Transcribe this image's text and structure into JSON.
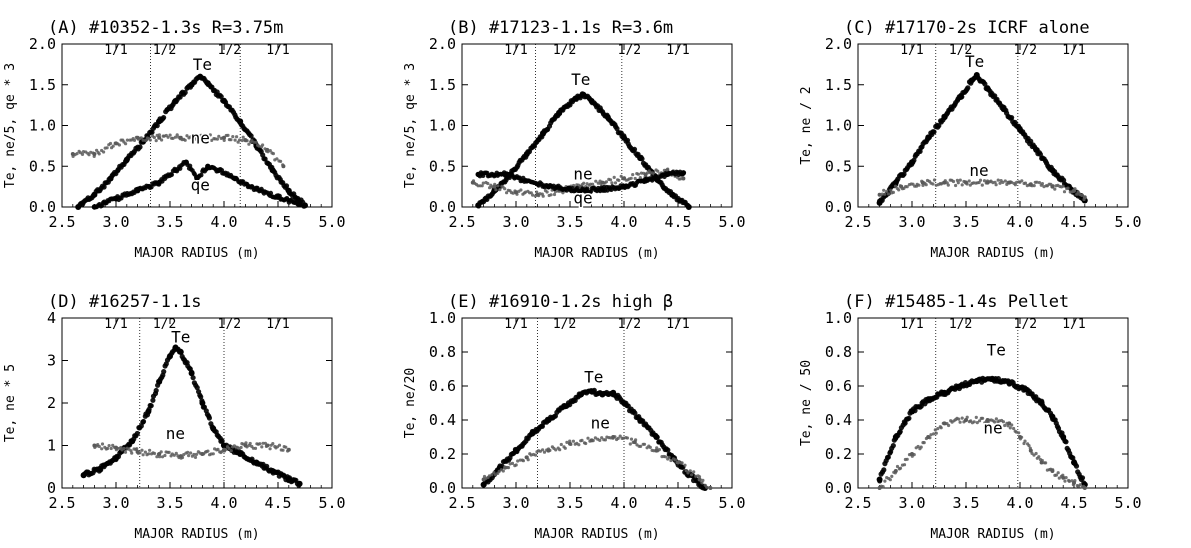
{
  "chart_data": [
    {
      "type": "scatter",
      "title": "(A) #10352-1.3s R=3.75m",
      "xlabel": "MAJOR RADIUS (m)",
      "ylabel": "Te, ne/5, qe * 3",
      "xlim": [
        2.5,
        5.0
      ],
      "ylim": [
        0.0,
        2.0
      ],
      "xticks": [
        "2.5",
        "3.0",
        "3.5",
        "4.0",
        "4.5",
        "5.0"
      ],
      "yticks": [
        "0.0",
        "0.5",
        "1.0",
        "1.5",
        "2.0"
      ],
      "rational_surfaces": {
        "labels": [
          "1/1",
          "1/2",
          "1/2",
          "1/1"
        ],
        "lines": [
          3.32,
          4.15
        ]
      },
      "series": [
        {
          "name": "Te",
          "x": [
            2.65,
            2.8,
            2.95,
            3.1,
            3.25,
            3.4,
            3.55,
            3.7,
            3.78,
            3.85,
            4.0,
            4.15,
            4.3,
            4.45,
            4.6,
            4.75
          ],
          "y": [
            0.0,
            0.15,
            0.35,
            0.58,
            0.8,
            1.05,
            1.3,
            1.5,
            1.6,
            1.52,
            1.3,
            1.05,
            0.75,
            0.45,
            0.2,
            0.02
          ]
        },
        {
          "name": "ne",
          "x": [
            2.6,
            2.8,
            3.0,
            3.2,
            3.4,
            3.6,
            3.8,
            4.0,
            4.2,
            4.4,
            4.55
          ],
          "y": [
            0.65,
            0.65,
            0.78,
            0.85,
            0.85,
            0.85,
            0.85,
            0.85,
            0.82,
            0.7,
            0.5
          ]
        },
        {
          "name": "qe",
          "x": [
            2.8,
            3.0,
            3.2,
            3.4,
            3.55,
            3.65,
            3.75,
            3.85,
            3.95,
            4.1,
            4.3,
            4.5,
            4.7
          ],
          "y": [
            0.0,
            0.1,
            0.2,
            0.3,
            0.45,
            0.55,
            0.35,
            0.5,
            0.45,
            0.35,
            0.22,
            0.12,
            0.03
          ]
        }
      ],
      "labels": [
        {
          "text": "Te",
          "x": 3.8,
          "y": 1.68
        },
        {
          "text": "ne",
          "x": 3.78,
          "y": 0.78
        },
        {
          "text": "qe",
          "x": 3.78,
          "y": 0.2
        }
      ]
    },
    {
      "type": "scatter",
      "title": "(B) #17123-1.1s  R=3.6m",
      "xlabel": "MAJOR RADIUS (m)",
      "ylabel": "Te, ne/5, qe * 3",
      "xlim": [
        2.5,
        5.0
      ],
      "ylim": [
        0.0,
        2.0
      ],
      "xticks": [
        "2.5",
        "3.0",
        "3.5",
        "4.0",
        "4.5",
        "5.0"
      ],
      "yticks": [
        "0.0",
        "0.5",
        "1.0",
        "1.5",
        "2.0"
      ],
      "rational_surfaces": {
        "labels": [
          "1/1",
          "1/2",
          "1/2",
          "1/1"
        ],
        "lines": [
          3.18,
          3.98
        ]
      },
      "series": [
        {
          "name": "Te",
          "x": [
            2.65,
            2.8,
            2.95,
            3.1,
            3.25,
            3.4,
            3.55,
            3.62,
            3.7,
            3.85,
            4.0,
            4.15,
            4.3,
            4.45,
            4.6
          ],
          "y": [
            0.02,
            0.2,
            0.4,
            0.65,
            0.9,
            1.15,
            1.33,
            1.38,
            1.3,
            1.1,
            0.85,
            0.6,
            0.35,
            0.15,
            0.0
          ]
        },
        {
          "name": "ne",
          "x": [
            2.6,
            2.8,
            3.0,
            3.2,
            3.4,
            3.6,
            3.8,
            4.0,
            4.2,
            4.4,
            4.55
          ],
          "y": [
            0.3,
            0.25,
            0.18,
            0.15,
            0.2,
            0.25,
            0.3,
            0.35,
            0.4,
            0.45,
            0.35
          ]
        },
        {
          "name": "qe",
          "x": [
            2.65,
            2.9,
            3.1,
            3.3,
            3.5,
            3.65,
            3.8,
            4.0,
            4.2,
            4.4,
            4.55
          ],
          "y": [
            0.4,
            0.4,
            0.32,
            0.25,
            0.22,
            0.2,
            0.22,
            0.25,
            0.32,
            0.4,
            0.42
          ]
        }
      ],
      "labels": [
        {
          "text": "Te",
          "x": 3.6,
          "y": 1.5
        },
        {
          "text": "ne",
          "x": 3.62,
          "y": 0.34
        },
        {
          "text": "qe",
          "x": 3.62,
          "y": 0.04
        }
      ]
    },
    {
      "type": "scatter",
      "title": "(C) #17170-2s ICRF alone",
      "xlabel": "MAJOR RADIUS (m)",
      "ylabel": "Te, ne / 2",
      "xlim": [
        2.5,
        5.0
      ],
      "ylim": [
        0.0,
        2.0
      ],
      "xticks": [
        "2.5",
        "3.0",
        "3.5",
        "4.0",
        "4.5",
        "5.0"
      ],
      "yticks": [
        "0.0",
        "0.5",
        "1.0",
        "1.5",
        "2.0"
      ],
      "rational_surfaces": {
        "labels": [
          "1/1",
          "1/2",
          "1/2",
          "1/1"
        ],
        "lines": [
          3.22,
          3.98
        ]
      },
      "series": [
        {
          "name": "Te",
          "x": [
            2.7,
            2.85,
            3.0,
            3.15,
            3.3,
            3.45,
            3.55,
            3.6,
            3.7,
            3.85,
            4.0,
            4.15,
            4.3,
            4.45,
            4.6
          ],
          "y": [
            0.05,
            0.3,
            0.55,
            0.85,
            1.1,
            1.35,
            1.55,
            1.62,
            1.45,
            1.2,
            0.95,
            0.7,
            0.45,
            0.25,
            0.08
          ]
        },
        {
          "name": "ne",
          "x": [
            2.7,
            2.9,
            3.1,
            3.3,
            3.5,
            3.7,
            3.9,
            4.1,
            4.3,
            4.5,
            4.6
          ],
          "y": [
            0.15,
            0.25,
            0.3,
            0.3,
            0.3,
            0.3,
            0.3,
            0.28,
            0.25,
            0.2,
            0.12
          ]
        }
      ],
      "labels": [
        {
          "text": "Te",
          "x": 3.58,
          "y": 1.72
        },
        {
          "text": "ne",
          "x": 3.62,
          "y": 0.38
        }
      ]
    },
    {
      "type": "scatter",
      "title": "(D) #16257-1.1s",
      "xlabel": "MAJOR RADIUS (m)",
      "ylabel": "Te, ne * 5",
      "xlim": [
        2.5,
        5.0
      ],
      "ylim": [
        0,
        4
      ],
      "xticks": [
        "2.5",
        "3.0",
        "3.5",
        "4.0",
        "4.5",
        "5.0"
      ],
      "yticks": [
        "0",
        "1",
        "2",
        "3",
        "4"
      ],
      "rational_surfaces": {
        "labels": [
          "1/1",
          "1/2",
          "1/2",
          "1/1"
        ],
        "lines": [
          3.22,
          4.0
        ]
      },
      "series": [
        {
          "name": "Te",
          "x": [
            2.7,
            2.85,
            3.0,
            3.15,
            3.3,
            3.4,
            3.5,
            3.55,
            3.6,
            3.7,
            3.8,
            3.9,
            4.0,
            4.15,
            4.3,
            4.45,
            4.6,
            4.7
          ],
          "y": [
            0.3,
            0.45,
            0.7,
            1.1,
            1.8,
            2.5,
            3.1,
            3.3,
            3.2,
            2.7,
            2.0,
            1.4,
            1.0,
            0.8,
            0.6,
            0.4,
            0.2,
            0.1
          ]
        },
        {
          "name": "ne",
          "x": [
            2.8,
            3.0,
            3.2,
            3.4,
            3.6,
            3.8,
            4.0,
            4.2,
            4.4,
            4.6
          ],
          "y": [
            1.0,
            0.95,
            0.85,
            0.8,
            0.75,
            0.8,
            0.9,
            1.0,
            1.0,
            0.9
          ]
        }
      ],
      "labels": [
        {
          "text": "Te",
          "x": 3.6,
          "y": 3.42
        },
        {
          "text": "ne",
          "x": 3.55,
          "y": 1.15
        }
      ]
    },
    {
      "type": "scatter",
      "title": "(E) #16910-1.2s high β",
      "xlabel": "MAJOR RADIUS (m)",
      "ylabel": "Te, ne/20",
      "xlim": [
        2.5,
        5.0
      ],
      "ylim": [
        0.0,
        1.0
      ],
      "xticks": [
        "2.5",
        "3.0",
        "3.5",
        "4.0",
        "4.5",
        "5.0"
      ],
      "yticks": [
        "0.0",
        "0.2",
        "0.4",
        "0.6",
        "0.8",
        "1.0"
      ],
      "rational_surfaces": {
        "labels": [
          "1/1",
          "1/2",
          "1/2",
          "1/1"
        ],
        "lines": [
          3.2,
          4.0
        ]
      },
      "series": [
        {
          "name": "Te",
          "x": [
            2.7,
            2.85,
            3.0,
            3.15,
            3.3,
            3.45,
            3.6,
            3.7,
            3.8,
            3.9,
            4.0,
            4.15,
            4.3,
            4.45,
            4.6,
            4.75
          ],
          "y": [
            0.02,
            0.12,
            0.22,
            0.32,
            0.4,
            0.48,
            0.55,
            0.57,
            0.55,
            0.56,
            0.5,
            0.4,
            0.3,
            0.18,
            0.08,
            0.0
          ]
        },
        {
          "name": "ne",
          "x": [
            2.7,
            2.9,
            3.1,
            3.3,
            3.5,
            3.7,
            3.9,
            4.1,
            4.3,
            4.5,
            4.7,
            4.8
          ],
          "y": [
            0.05,
            0.12,
            0.18,
            0.22,
            0.26,
            0.28,
            0.3,
            0.27,
            0.22,
            0.15,
            0.05,
            0.0
          ]
        }
      ],
      "labels": [
        {
          "text": "Te",
          "x": 3.72,
          "y": 0.62
        },
        {
          "text": "ne",
          "x": 3.78,
          "y": 0.35
        }
      ]
    },
    {
      "type": "scatter",
      "title": "(F) #15485-1.4s  Pellet",
      "xlabel": "MAJOR RADIUS (m)",
      "ylabel": "Te, ne / 50",
      "xlim": [
        2.5,
        5.0
      ],
      "ylim": [
        0.0,
        1.0
      ],
      "xticks": [
        "2.5",
        "3.0",
        "3.5",
        "4.0",
        "4.5",
        "5.0"
      ],
      "yticks": [
        "0.0",
        "0.2",
        "0.4",
        "0.6",
        "0.8",
        "1.0"
      ],
      "rational_surfaces": {
        "labels": [
          "1/1",
          "1/2",
          "1/2",
          "1/1"
        ],
        "lines": [
          3.22,
          3.98
        ]
      },
      "series": [
        {
          "name": "Te",
          "x": [
            2.7,
            2.85,
            3.0,
            3.15,
            3.3,
            3.45,
            3.6,
            3.75,
            3.9,
            4.05,
            4.2,
            4.3,
            4.4,
            4.5,
            4.6
          ],
          "y": [
            0.05,
            0.3,
            0.45,
            0.52,
            0.56,
            0.6,
            0.63,
            0.64,
            0.62,
            0.58,
            0.5,
            0.42,
            0.3,
            0.15,
            0.02
          ]
        },
        {
          "name": "ne",
          "x": [
            2.7,
            2.85,
            3.0,
            3.15,
            3.3,
            3.5,
            3.7,
            3.9,
            4.0,
            4.1,
            4.2,
            4.3,
            4.4,
            4.5,
            4.6
          ],
          "y": [
            0.0,
            0.1,
            0.2,
            0.3,
            0.38,
            0.4,
            0.4,
            0.38,
            0.3,
            0.22,
            0.15,
            0.1,
            0.06,
            0.03,
            0.0
          ]
        }
      ],
      "labels": [
        {
          "text": "Te",
          "x": 3.78,
          "y": 0.78
        },
        {
          "text": "ne",
          "x": 3.75,
          "y": 0.32
        }
      ]
    }
  ]
}
